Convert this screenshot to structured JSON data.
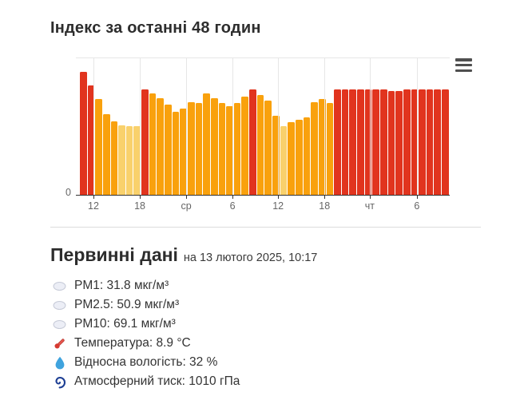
{
  "chart": {
    "title": "Індекс за останні 48 годин",
    "y_zero_label": "0",
    "x_ticks": [
      {
        "label": "12",
        "x_pct": 4.7
      },
      {
        "label": "18",
        "x_pct": 17.1
      },
      {
        "label": "ср",
        "x_pct": 29.5
      },
      {
        "label": "6",
        "x_pct": 41.9
      },
      {
        "label": "12",
        "x_pct": 54.1
      },
      {
        "label": "18",
        "x_pct": 66.5
      },
      {
        "label": "чт",
        "x_pct": 78.6
      },
      {
        "label": "6",
        "x_pct": 91.2
      }
    ],
    "bar_colors": {
      "red": "#e1341e",
      "orange": "#f9a10d",
      "pale": "#f9d16c"
    },
    "bars": [
      {
        "c": "red",
        "v": 90
      },
      {
        "c": "red",
        "v": 80
      },
      {
        "c": "orange",
        "v": 70
      },
      {
        "c": "orange",
        "v": 59
      },
      {
        "c": "orange",
        "v": 54
      },
      {
        "c": "pale",
        "v": 51
      },
      {
        "c": "pale",
        "v": 50
      },
      {
        "c": "pale",
        "v": 50
      },
      {
        "c": "red",
        "v": 77
      },
      {
        "c": "orange",
        "v": 74
      },
      {
        "c": "orange",
        "v": 71
      },
      {
        "c": "orange",
        "v": 66
      },
      {
        "c": "orange",
        "v": 61
      },
      {
        "c": "orange",
        "v": 63
      },
      {
        "c": "orange",
        "v": 68
      },
      {
        "c": "orange",
        "v": 67
      },
      {
        "c": "orange",
        "v": 74
      },
      {
        "c": "orange",
        "v": 71
      },
      {
        "c": "orange",
        "v": 67
      },
      {
        "c": "orange",
        "v": 65
      },
      {
        "c": "orange",
        "v": 67
      },
      {
        "c": "orange",
        "v": 72
      },
      {
        "c": "red",
        "v": 77
      },
      {
        "c": "orange",
        "v": 73
      },
      {
        "c": "orange",
        "v": 69
      },
      {
        "c": "orange",
        "v": 58
      },
      {
        "c": "pale",
        "v": 50
      },
      {
        "c": "orange",
        "v": 53
      },
      {
        "c": "orange",
        "v": 55
      },
      {
        "c": "orange",
        "v": 57
      },
      {
        "c": "orange",
        "v": 68
      },
      {
        "c": "orange",
        "v": 70
      },
      {
        "c": "orange",
        "v": 67
      },
      {
        "c": "red",
        "v": 77
      },
      {
        "c": "red",
        "v": 77
      },
      {
        "c": "red",
        "v": 77
      },
      {
        "c": "red",
        "v": 77
      },
      {
        "c": "red",
        "v": 77
      },
      {
        "c": "red",
        "v": 77
      },
      {
        "c": "red",
        "v": 77
      },
      {
        "c": "red",
        "v": 76
      },
      {
        "c": "red",
        "v": 76
      },
      {
        "c": "red",
        "v": 77
      },
      {
        "c": "red",
        "v": 77
      },
      {
        "c": "red",
        "v": 77
      },
      {
        "c": "red",
        "v": 77
      },
      {
        "c": "red",
        "v": 77
      },
      {
        "c": "red",
        "v": 77
      }
    ]
  },
  "chart_data": {
    "type": "bar",
    "title": "Індекс за останні 48 годин",
    "xlabel": "",
    "ylabel": "",
    "x_tick_labels": [
      "12",
      "18",
      "ср",
      "6",
      "12",
      "18",
      "чт",
      "6"
    ],
    "y_axis_labels_visible": [
      "0"
    ],
    "ylim": [
      0,
      100
    ],
    "legend": "none",
    "grid": "vertical gridlines at x ticks, single top gridline",
    "note": "48 hourly bars; values estimated as % of plot height (only 0 labeled on y-axis); color encodes index level",
    "series": [
      {
        "name": "Індекс",
        "values": [
          90,
          80,
          70,
          59,
          54,
          51,
          50,
          50,
          77,
          74,
          71,
          66,
          61,
          63,
          68,
          67,
          74,
          71,
          67,
          65,
          67,
          72,
          77,
          73,
          69,
          58,
          50,
          53,
          55,
          57,
          68,
          70,
          67,
          77,
          77,
          77,
          77,
          77,
          77,
          77,
          76,
          76,
          77,
          77,
          77,
          77,
          77,
          77
        ],
        "color_keys": [
          "red",
          "red",
          "orange",
          "orange",
          "orange",
          "pale",
          "pale",
          "pale",
          "red",
          "orange",
          "orange",
          "orange",
          "orange",
          "orange",
          "orange",
          "orange",
          "orange",
          "orange",
          "orange",
          "orange",
          "orange",
          "orange",
          "red",
          "orange",
          "orange",
          "orange",
          "pale",
          "orange",
          "orange",
          "orange",
          "orange",
          "orange",
          "orange",
          "red",
          "red",
          "red",
          "red",
          "red",
          "red",
          "red",
          "red",
          "red",
          "red",
          "red",
          "red",
          "red",
          "red",
          "red"
        ]
      }
    ],
    "palette": {
      "red": "#e1341e",
      "orange": "#f9a10d",
      "pale": "#f9d16c"
    }
  },
  "primary": {
    "heading": "Первинні дані",
    "timestamp": "на 13 лютого 2025, 10:17",
    "items": [
      {
        "icon": "pm-particles",
        "text": "PM1: 31.8 мкг/м³"
      },
      {
        "icon": "pm-particles",
        "text": "PM2.5: 50.9 мкг/м³"
      },
      {
        "icon": "pm-particles",
        "text": "PM10: 69.1 мкг/м³"
      },
      {
        "icon": "thermometer",
        "text": "Температура: 8.9 °C"
      },
      {
        "icon": "humidity-droplet",
        "text": "Відносна вологість: 32 %"
      },
      {
        "icon": "pressure-spiral",
        "text": "Атмосферний тиск: 1010 гПа"
      }
    ]
  }
}
